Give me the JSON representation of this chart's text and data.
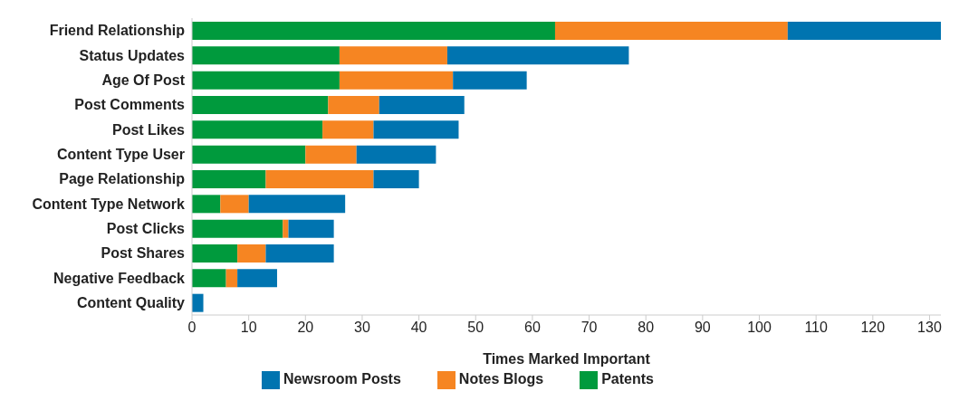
{
  "chart_data": {
    "type": "bar",
    "orientation": "horizontal",
    "stacked": true,
    "xlabel": "Times Marked Important",
    "categories": [
      "Friend Relationship",
      "Status Updates",
      "Age Of Post",
      "Post Comments",
      "Post Likes",
      "Content Type User",
      "Page Relationship",
      "Content Type Network",
      "Post Clicks",
      "Post Shares",
      "Negative Feedback",
      "Content Quality"
    ],
    "series": [
      {
        "name": "Patents",
        "color": "#009a3d",
        "values": [
          64,
          26,
          26,
          24,
          23,
          20,
          13,
          5,
          16,
          8,
          6,
          0
        ]
      },
      {
        "name": "Notes Blogs",
        "color": "#f68522",
        "values": [
          41,
          19,
          20,
          9,
          9,
          9,
          19,
          5,
          1,
          5,
          2,
          0
        ]
      },
      {
        "name": "Newsroom Posts",
        "color": "#0074b0",
        "values": [
          27,
          32,
          13,
          15,
          15,
          14,
          8,
          17,
          8,
          12,
          7,
          2
        ]
      }
    ],
    "xlim": [
      0,
      132
    ],
    "xticks": [
      0,
      10,
      20,
      30,
      40,
      50,
      60,
      70,
      80,
      90,
      100,
      110,
      120,
      130
    ],
    "grid": false,
    "legend": "bottom"
  }
}
